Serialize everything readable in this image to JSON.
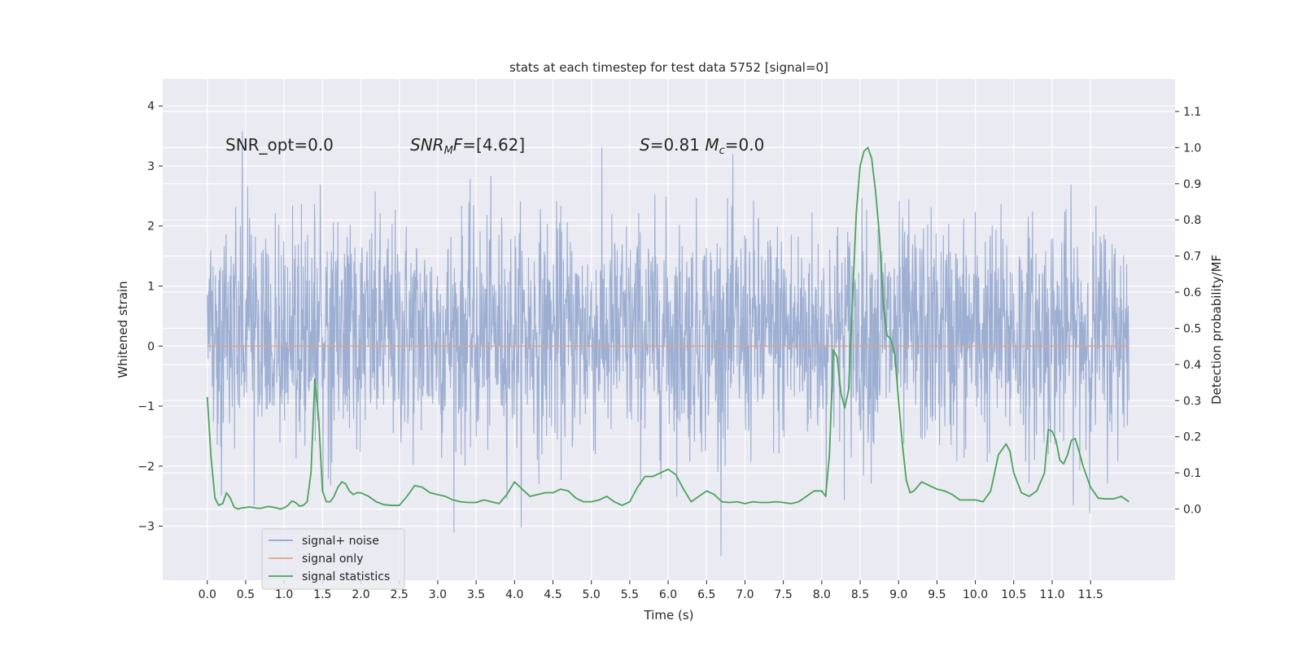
{
  "chart_data": {
    "type": "line",
    "title": "stats at each timestep for test data 5752 [signal=0]",
    "xlabel": "Time (s)",
    "ylabel": "Whitened strain",
    "y2label": "Detection probability/MF",
    "xlim": [
      -0.58,
      12.6
    ],
    "ylim": [
      -3.9,
      4.45
    ],
    "y2lim": [
      -0.197,
      1.19
    ],
    "grid": true,
    "legend_position": "lower-left",
    "x_ticks": [
      "0.0",
      "0.5",
      "1.0",
      "1.5",
      "2.0",
      "2.5",
      "3.0",
      "3.5",
      "4.0",
      "4.5",
      "5.0",
      "5.5",
      "6.0",
      "6.5",
      "7.0",
      "7.5",
      "8.0",
      "8.5",
      "9.0",
      "9.5",
      "10.0",
      "10.5",
      "11.0",
      "11.5"
    ],
    "y_ticks": [
      "4",
      "3",
      "2",
      "1",
      "0",
      "−1",
      "−2",
      "−3"
    ],
    "y_tick_values": [
      4,
      3,
      2,
      1,
      0,
      -1,
      -2,
      -3
    ],
    "y2_ticks": [
      "1.1",
      "1.0",
      "0.9",
      "0.8",
      "0.7",
      "0.6",
      "0.5",
      "0.4",
      "0.3",
      "0.2",
      "0.1",
      "0.0"
    ],
    "y2_tick_values": [
      1.1,
      1.0,
      0.9,
      0.8,
      0.7,
      0.6,
      0.5,
      0.4,
      0.3,
      0.2,
      0.1,
      0.0
    ],
    "annotations": [
      {
        "key": "snr_opt",
        "text": "SNR_opt=0.0",
        "x": 0.2,
        "y": 3.3
      },
      {
        "key": "snr_mf",
        "text": "SNR_MF=[4.62]",
        "x": 2.6,
        "y": 3.3
      },
      {
        "key": "s_mc",
        "text": "S=0.81  M_c=0.0",
        "x": 5.6,
        "y": 3.3
      }
    ],
    "series": [
      {
        "name": "signal+ noise",
        "axis": "left",
        "color": "#8ea3cc",
        "style": "dense noise, approx. range −3.5 to 4.1 about 0",
        "duration": 12.0
      },
      {
        "name": "signal only",
        "axis": "left",
        "color": "#e3a285",
        "x": [
          0.0,
          12.0
        ],
        "y": [
          0.0,
          0.0
        ]
      },
      {
        "name": "signal statistics",
        "axis": "right",
        "color": "#4aa35a",
        "x": [
          0.0,
          0.05,
          0.1,
          0.15,
          0.2,
          0.25,
          0.3,
          0.35,
          0.4,
          0.45,
          0.5,
          0.55,
          0.6,
          0.65,
          0.7,
          0.75,
          0.8,
          0.85,
          0.9,
          0.95,
          1.0,
          1.05,
          1.1,
          1.15,
          1.2,
          1.25,
          1.3,
          1.35,
          1.4,
          1.45,
          1.5,
          1.55,
          1.6,
          1.65,
          1.7,
          1.75,
          1.8,
          1.85,
          1.9,
          1.95,
          2.0,
          2.1,
          2.2,
          2.3,
          2.4,
          2.5,
          2.6,
          2.7,
          2.8,
          2.9,
          3.0,
          3.1,
          3.2,
          3.3,
          3.4,
          3.5,
          3.6,
          3.7,
          3.8,
          3.9,
          4.0,
          4.1,
          4.2,
          4.3,
          4.4,
          4.5,
          4.6,
          4.7,
          4.8,
          4.9,
          5.0,
          5.1,
          5.2,
          5.3,
          5.4,
          5.5,
          5.6,
          5.7,
          5.8,
          5.9,
          6.0,
          6.1,
          6.2,
          6.3,
          6.4,
          6.5,
          6.6,
          6.7,
          6.8,
          6.9,
          7.0,
          7.1,
          7.2,
          7.3,
          7.4,
          7.5,
          7.6,
          7.7,
          7.8,
          7.9,
          8.0,
          8.05,
          8.1,
          8.15,
          8.2,
          8.25,
          8.3,
          8.35,
          8.4,
          8.45,
          8.5,
          8.55,
          8.6,
          8.65,
          8.7,
          8.75,
          8.8,
          8.85,
          8.9,
          8.95,
          9.0,
          9.05,
          9.1,
          9.15,
          9.2,
          9.3,
          9.4,
          9.5,
          9.6,
          9.7,
          9.8,
          9.9,
          10.0,
          10.1,
          10.2,
          10.3,
          10.4,
          10.45,
          10.5,
          10.6,
          10.7,
          10.8,
          10.9,
          10.95,
          11.0,
          11.05,
          11.1,
          11.15,
          11.2,
          11.25,
          11.3,
          11.35,
          11.4,
          11.5,
          11.6,
          11.7,
          11.8,
          11.9,
          12.0
        ],
        "y": [
          0.31,
          0.14,
          0.03,
          0.01,
          0.015,
          0.045,
          0.03,
          0.005,
          0.0,
          0.003,
          0.004,
          0.006,
          0.004,
          0.002,
          0.002,
          0.005,
          0.007,
          0.005,
          0.003,
          0.0,
          0.003,
          0.01,
          0.022,
          0.018,
          0.008,
          0.01,
          0.02,
          0.1,
          0.36,
          0.25,
          0.05,
          0.02,
          0.02,
          0.035,
          0.06,
          0.075,
          0.07,
          0.05,
          0.04,
          0.045,
          0.045,
          0.035,
          0.02,
          0.012,
          0.01,
          0.01,
          0.035,
          0.065,
          0.06,
          0.045,
          0.04,
          0.035,
          0.025,
          0.02,
          0.018,
          0.018,
          0.025,
          0.02,
          0.015,
          0.04,
          0.075,
          0.055,
          0.035,
          0.04,
          0.045,
          0.045,
          0.055,
          0.05,
          0.03,
          0.02,
          0.02,
          0.025,
          0.035,
          0.02,
          0.01,
          0.02,
          0.06,
          0.09,
          0.09,
          0.1,
          0.11,
          0.095,
          0.055,
          0.02,
          0.035,
          0.05,
          0.04,
          0.02,
          0.018,
          0.02,
          0.015,
          0.02,
          0.018,
          0.018,
          0.02,
          0.018,
          0.015,
          0.02,
          0.035,
          0.05,
          0.05,
          0.035,
          0.15,
          0.44,
          0.42,
          0.32,
          0.28,
          0.33,
          0.58,
          0.82,
          0.95,
          0.99,
          1.0,
          0.97,
          0.88,
          0.76,
          0.57,
          0.48,
          0.47,
          0.43,
          0.3,
          0.18,
          0.08,
          0.045,
          0.05,
          0.075,
          0.065,
          0.055,
          0.05,
          0.04,
          0.025,
          0.025,
          0.025,
          0.02,
          0.05,
          0.15,
          0.18,
          0.16,
          0.1,
          0.045,
          0.035,
          0.05,
          0.1,
          0.22,
          0.215,
          0.19,
          0.135,
          0.125,
          0.15,
          0.19,
          0.195,
          0.16,
          0.12,
          0.06,
          0.03,
          0.028,
          0.028,
          0.035,
          0.02
        ]
      }
    ]
  },
  "legend": {
    "items": [
      {
        "label": "signal+ noise",
        "color": "#8ea3cc"
      },
      {
        "label": "signal only",
        "color": "#e3a285"
      },
      {
        "label": "signal statistics",
        "color": "#4aa35a"
      }
    ]
  }
}
